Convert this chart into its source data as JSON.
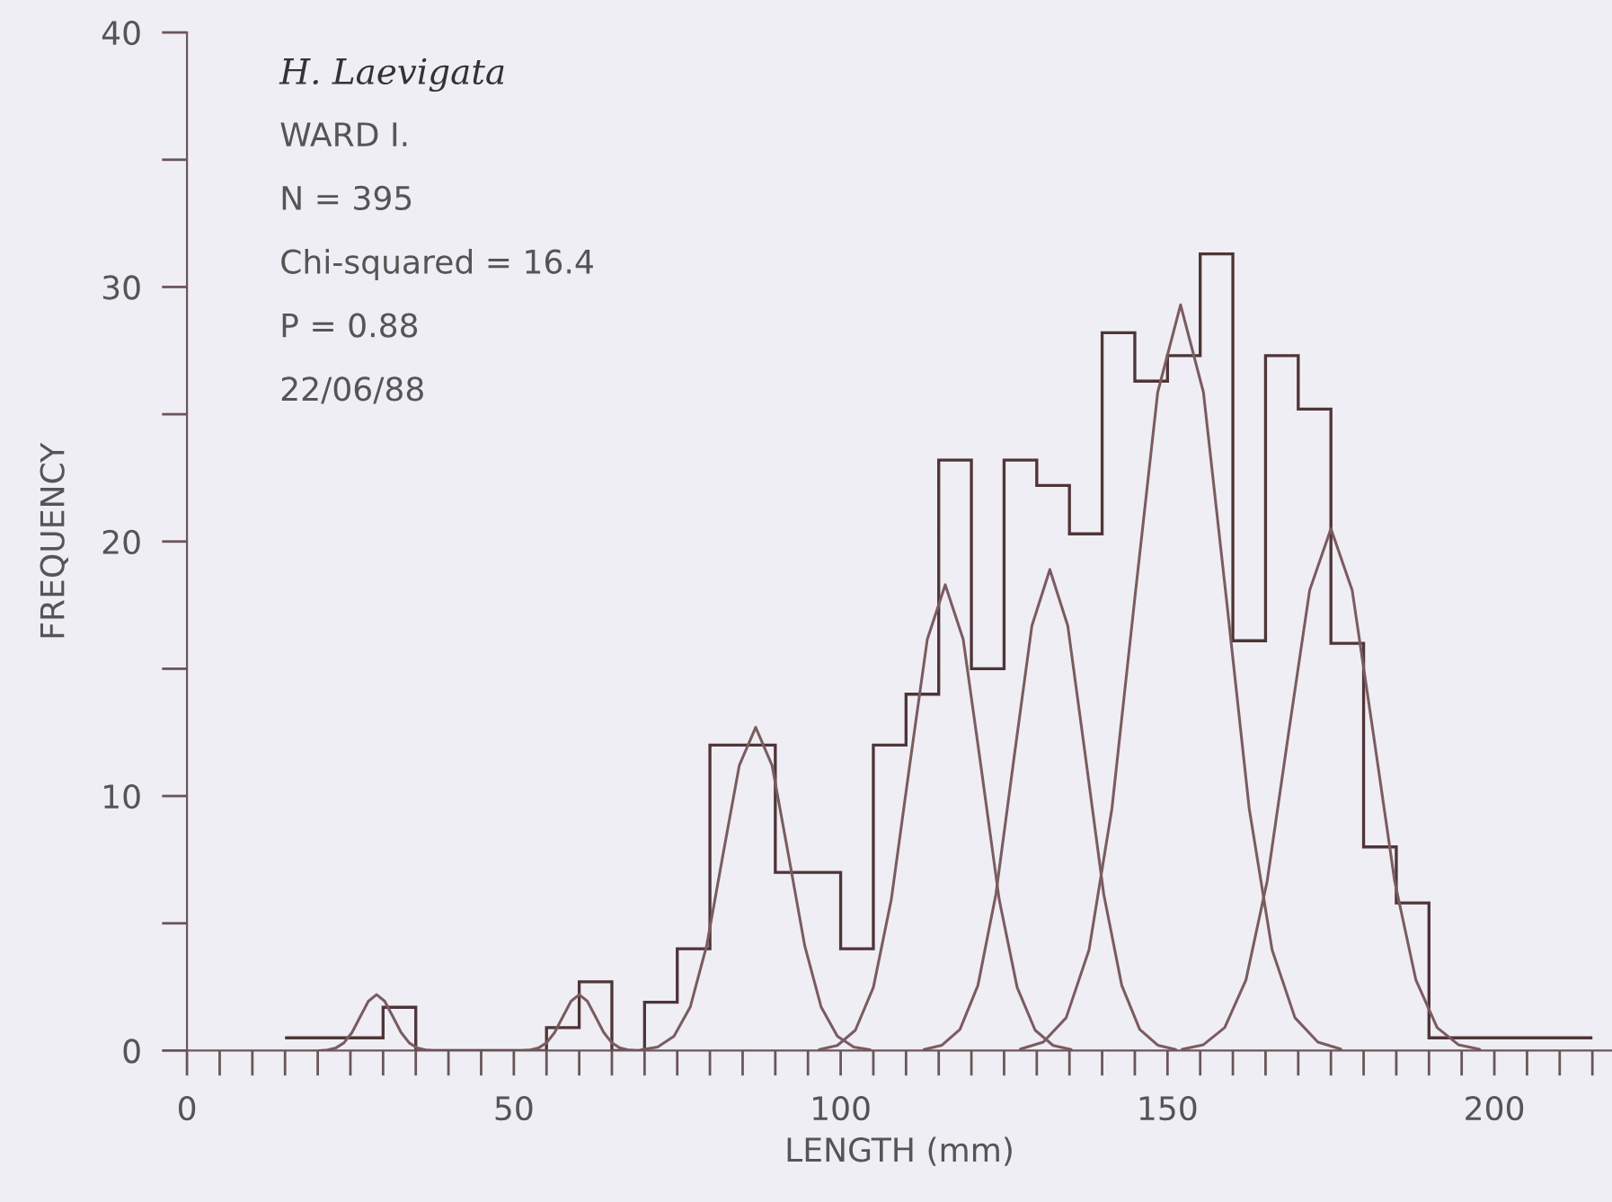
{
  "chart_data": {
    "type": "histogram",
    "xlabel": "LENGTH (mm)",
    "ylabel": "FREQUENCY",
    "annotations": [
      "H. Laevigata",
      "WARD I.",
      "N = 395",
      "Chi-squared = 16.4",
      "P = 0.88",
      "22/06/88"
    ],
    "bins": [
      15,
      20,
      25,
      30,
      35,
      40,
      45,
      50,
      55,
      60,
      65,
      70,
      75,
      80,
      85,
      90,
      95,
      100,
      105,
      110,
      115,
      120,
      125,
      130,
      135,
      140,
      145,
      150,
      155,
      160,
      165,
      170,
      175,
      180,
      185,
      190,
      195,
      200,
      205,
      210,
      215
    ],
    "color": "#4f3538",
    "values": [
      0.5,
      0.5,
      0.5,
      1.7,
      0,
      0,
      0,
      0,
      0.9,
      2.7,
      0,
      1.9,
      4,
      12,
      12,
      7,
      7,
      4,
      12,
      14,
      23.2,
      15,
      23.2,
      22.2,
      20.3,
      28.2,
      26.3,
      27.3,
      31.3,
      16.1,
      27.3,
      25.2,
      16,
      8,
      5.8,
      0.5,
      0.5,
      0.5,
      0.5,
      0.5
    ],
    "series": [
      {
        "type": "line",
        "color": "#7a5c60",
        "x": [
          20.25,
          21.5,
          22.75,
          24,
          25.25,
          26.5,
          27.75,
          29,
          30.25,
          31.5,
          32.75,
          34,
          35.25,
          36.5,
          37.75
        ],
        "values": [
          0,
          0.02,
          0.1,
          0.3,
          0.71,
          1.33,
          1.94,
          2.2,
          1.94,
          1.33,
          0.71,
          0.3,
          0.1,
          0.02,
          0
        ]
      },
      {
        "type": "line",
        "color": "#7a5c60",
        "x": [
          51.25,
          52.5,
          53.75,
          55,
          56.25,
          57.5,
          58.75,
          60,
          61.25,
          62.5,
          63.75,
          65,
          66.25,
          67.5,
          68.75
        ],
        "values": [
          0,
          0.02,
          0.1,
          0.3,
          0.71,
          1.33,
          1.94,
          2.2,
          1.94,
          1.33,
          0.71,
          0.3,
          0.1,
          0.02,
          0
        ]
      },
      {
        "type": "line",
        "color": "#7a5c60",
        "x": [
          69.5,
          72,
          74.5,
          77,
          79.5,
          82,
          84.5,
          87,
          89.5,
          92,
          94.5,
          97,
          99.5,
          102,
          104.5
        ],
        "values": [
          0.03,
          0.14,
          0.56,
          1.72,
          4.12,
          7.7,
          11.21,
          12.7,
          11.21,
          7.7,
          4.12,
          1.72,
          0.56,
          0.14,
          0.03
        ]
      },
      {
        "type": "line",
        "color": "#7a5c60",
        "x": [
          96.75,
          99.5,
          102.25,
          105,
          107.75,
          110.5,
          113.25,
          116,
          118.75,
          121.5,
          124.25,
          127,
          129.75,
          132.5,
          135.25
        ],
        "values": [
          0.04,
          0.2,
          0.8,
          2.48,
          5.94,
          11.1,
          16.15,
          18.3,
          16.15,
          11.1,
          5.94,
          2.48,
          0.8,
          0.2,
          0.04
        ]
      },
      {
        "type": "line",
        "color": "#7a5c60",
        "x": [
          112.75,
          115.5,
          118.25,
          121,
          123.75,
          126.5,
          129.25,
          132,
          134.75,
          137.5,
          140.25,
          143,
          145.75,
          148.5,
          151.25
        ],
        "values": [
          0.04,
          0.21,
          0.83,
          2.56,
          6.14,
          11.46,
          16.68,
          18.9,
          16.68,
          11.46,
          6.14,
          2.56,
          0.83,
          0.21,
          0.04
        ]
      },
      {
        "type": "line",
        "color": "#7a5c60",
        "x": [
          127.5,
          131,
          134.5,
          138,
          141.5,
          145,
          148.5,
          152,
          155.5,
          159,
          162.5,
          166,
          169.5,
          173,
          176.5
        ],
        "values": [
          0.06,
          0.33,
          1.29,
          3.96,
          9.51,
          17.77,
          25.86,
          29.3,
          25.86,
          17.77,
          9.51,
          3.96,
          1.29,
          0.33,
          0.06
        ]
      },
      {
        "type": "line",
        "color": "#7a5c60",
        "x": [
          152.25,
          155.5,
          158.75,
          162,
          165.25,
          168.5,
          171.75,
          175,
          178.25,
          181.5,
          184.75,
          188,
          191.25,
          194.5,
          197.75
        ],
        "values": [
          0.05,
          0.23,
          0.9,
          2.77,
          6.66,
          12.43,
          18.09,
          20.5,
          18.09,
          12.43,
          6.66,
          2.77,
          0.9,
          0.23,
          0.05
        ]
      }
    ],
    "xlim": [
      0,
      218
    ],
    "ylim": [
      0,
      40
    ],
    "xticks": [
      0,
      {
        "value": 5,
        "label": null
      },
      {
        "value": 10,
        "label": null
      },
      {
        "value": 15,
        "label": null
      },
      {
        "value": 20,
        "label": null
      },
      {
        "value": 25,
        "label": null
      },
      {
        "value": 30,
        "label": null
      },
      {
        "value": 35,
        "label": null
      },
      {
        "value": 40,
        "label": null
      },
      {
        "value": 45,
        "label": null
      },
      50,
      {
        "value": 55,
        "label": null
      },
      {
        "value": 60,
        "label": null
      },
      {
        "value": 65,
        "label": null
      },
      {
        "value": 70,
        "label": null
      },
      {
        "value": 75,
        "label": null
      },
      {
        "value": 80,
        "label": null
      },
      {
        "value": 85,
        "label": null
      },
      {
        "value": 90,
        "label": null
      },
      {
        "value": 95,
        "label": null
      },
      100,
      {
        "value": 105,
        "label": null
      },
      {
        "value": 110,
        "label": null
      },
      {
        "value": 115,
        "label": null
      },
      {
        "value": 120,
        "label": null
      },
      {
        "value": 125,
        "label": null
      },
      {
        "value": 130,
        "label": null
      },
      {
        "value": 135,
        "label": null
      },
      {
        "value": 140,
        "label": null
      },
      {
        "value": 145,
        "label": null
      },
      150,
      {
        "value": 155,
        "label": null
      },
      {
        "value": 160,
        "label": null
      },
      {
        "value": 165,
        "label": null
      },
      {
        "value": 170,
        "label": null
      },
      {
        "value": 175,
        "label": null
      },
      {
        "value": 180,
        "label": null
      },
      {
        "value": 185,
        "label": null
      },
      {
        "value": 190,
        "label": null
      },
      {
        "value": 195,
        "label": null
      },
      200,
      {
        "value": 205,
        "label": null
      },
      {
        "value": 210,
        "label": null
      },
      {
        "value": 215,
        "label": null
      }
    ],
    "yticks": [
      0,
      {
        "value": 5,
        "label": null
      },
      10,
      {
        "value": 15,
        "label": null
      },
      20,
      {
        "value": 25,
        "label": null
      },
      30,
      {
        "value": 35,
        "label": null
      },
      40
    ],
    "grid": false,
    "legend": false
  }
}
